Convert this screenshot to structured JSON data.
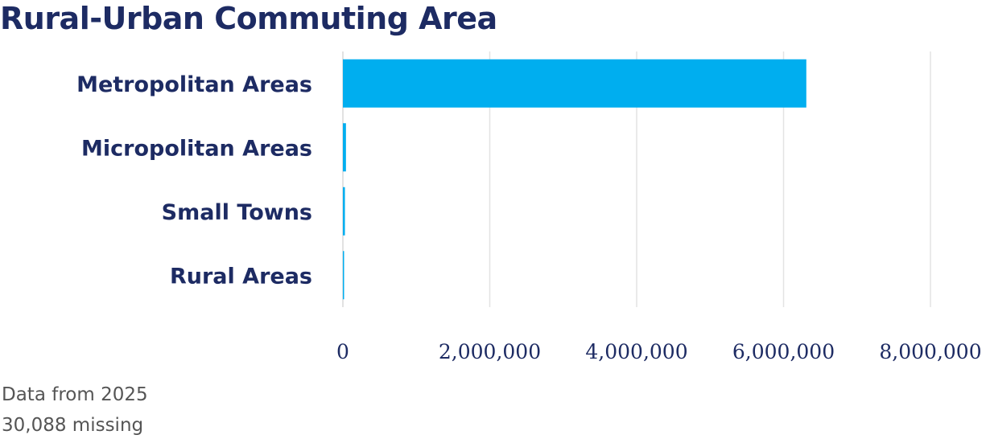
{
  "chart_data": {
    "type": "bar",
    "orientation": "horizontal",
    "title": "Rural-Urban Commuting Area",
    "categories": [
      "Metropolitan Areas",
      "Micropolitan Areas",
      "Small Towns",
      "Rural Areas"
    ],
    "values": [
      6310000,
      42000,
      28000,
      10000
    ],
    "xlim": [
      0,
      8000000
    ],
    "xticks": [
      0,
      2000000,
      4000000,
      6000000,
      8000000
    ],
    "xtick_labels": [
      "0",
      "2,000,000",
      "4,000,000",
      "6,000,000",
      "8,000,000"
    ],
    "bar_color": "#00aeef",
    "grid": true
  },
  "notes": {
    "year": "Data from 2025",
    "missing": "30,088 missing"
  }
}
